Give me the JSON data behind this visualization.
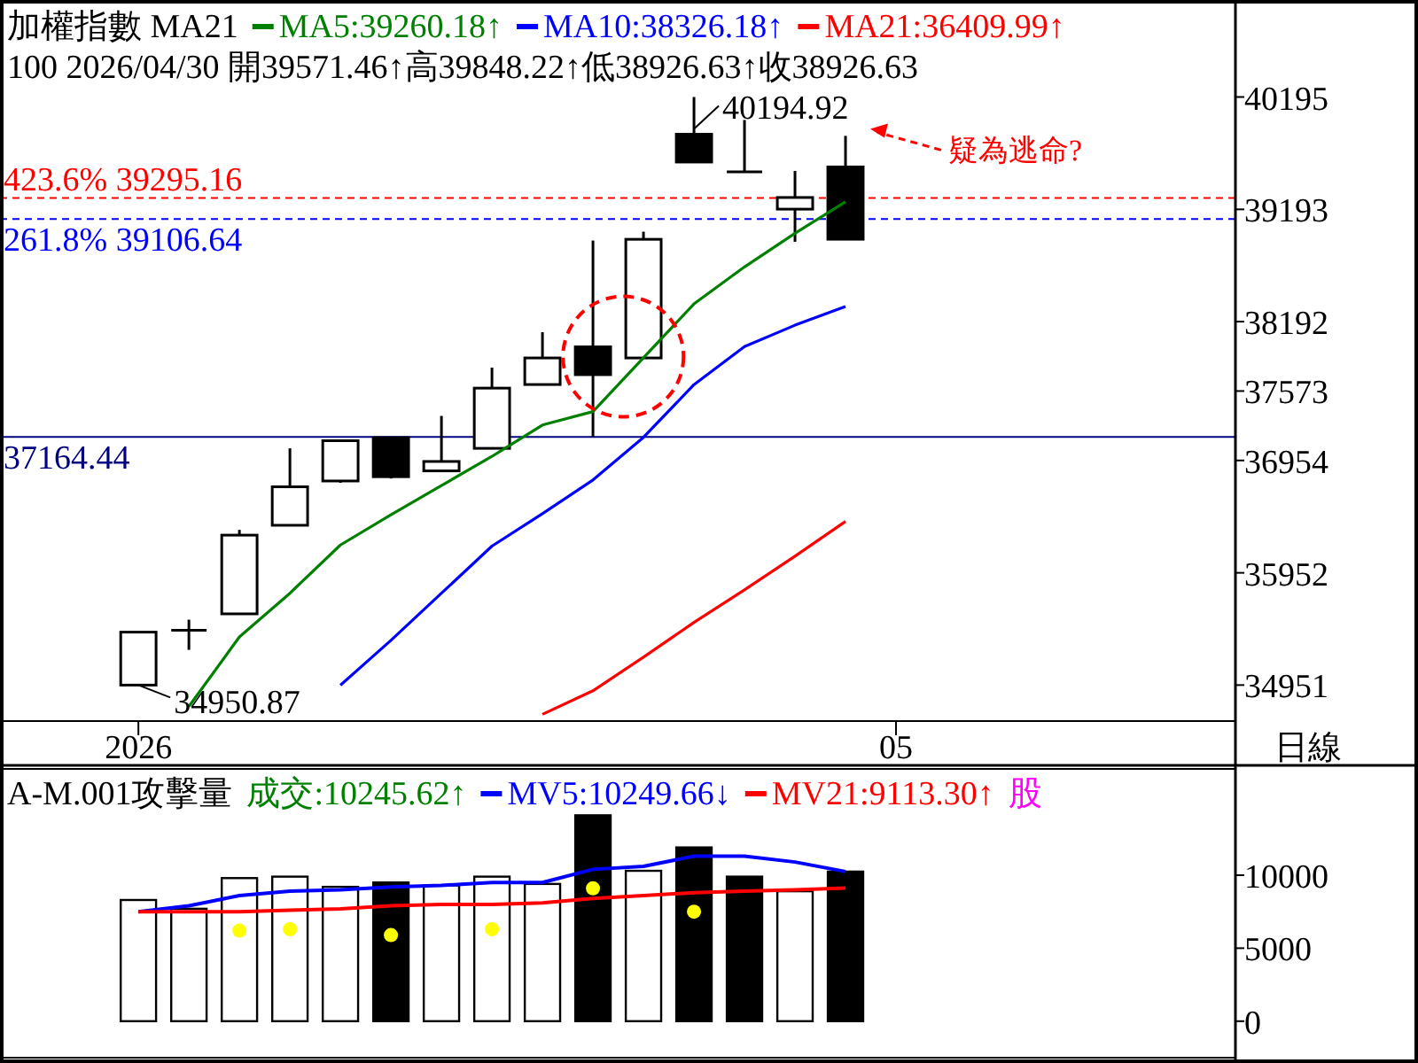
{
  "chart_data": [
    {
      "type": "candlestick",
      "title": "加權指數 MA21",
      "subtitle": "100 2026/04/30 開39571.46↑高39848.22↑低38926.63↑收38926.63",
      "legend": "top",
      "categories": [
        "2026",
        null,
        null,
        null,
        null,
        null,
        null,
        null,
        null,
        null,
        null,
        null,
        null,
        null,
        null,
        "05",
        null,
        null,
        null,
        null,
        null,
        null
      ],
      "ohlc": [
        [
          34950.87,
          35423,
          34950.87,
          35423
        ],
        [
          35439,
          35534,
          35265,
          35439
        ],
        [
          35586,
          36335,
          35586,
          36288
        ],
        [
          36376,
          37062,
          36376,
          36719
        ],
        [
          36771,
          37130,
          36755,
          37130
        ],
        [
          37157,
          37157,
          36793,
          36809
        ],
        [
          36861,
          37351,
          36861,
          36945
        ],
        [
          37062,
          37782,
          37062,
          37599
        ],
        [
          37631,
          38098,
          37631,
          37868
        ],
        [
          37967,
          38915,
          37164.44,
          37719
        ],
        [
          37868,
          38994,
          37868,
          38926
        ],
        [
          39863,
          40194.92,
          39615,
          39615
        ],
        [
          39527,
          39990,
          39527,
          39527
        ],
        [
          39195,
          39536,
          38904,
          39299
        ],
        [
          39571.46,
          39848.22,
          38926.63,
          38926.63
        ],
        null,
        null,
        null,
        null,
        null,
        null,
        null
      ],
      "series": [
        {
          "type": "line",
          "name": "MA5:39260.18↑",
          "color": "#008000",
          "values": [
            null,
            34760,
            35380,
            35770,
            36200,
            36470,
            36730,
            36990,
            37270,
            37390,
            37870,
            38350,
            38680,
            38980,
            39260.18,
            null,
            null,
            null,
            null,
            null,
            null,
            null
          ]
        },
        {
          "type": "line",
          "name": "MA10:38326.18↑",
          "color": "#0000ff",
          "values": [
            null,
            null,
            null,
            null,
            34950,
            35350,
            35770,
            36190,
            36480,
            36780,
            37160,
            37630,
            37970,
            38160,
            38326.18,
            null,
            null,
            null,
            null,
            null,
            null,
            null
          ]
        },
        {
          "type": "line",
          "name": "MA21:36409.99↑",
          "color": "#ff0000",
          "values": [
            null,
            null,
            null,
            null,
            null,
            null,
            null,
            null,
            34690,
            34900,
            35200,
            35510,
            35800,
            36100,
            36409.99,
            null,
            null,
            null,
            null,
            null,
            null,
            null
          ]
        }
      ],
      "ylim": [
        34630,
        41060
      ],
      "yticks": [
        34951,
        35952,
        36954,
        37573,
        38192,
        39193,
        40195
      ],
      "ref_lines": [
        {
          "axis": "y",
          "value": 39295.16,
          "label": "423.6% 39295.16",
          "color": "#ff0000",
          "line_style": "dashed"
        },
        {
          "axis": "y",
          "value": 39106.64,
          "label": "261.8% 39106.64",
          "color": "#0000ff",
          "line_style": "dashed"
        },
        {
          "axis": "y",
          "value": 37164.44,
          "label": "37164.44",
          "color": "#000080",
          "line_style": "solid"
        }
      ],
      "annotations": [
        "40194.92",
        "34950.87",
        "疑為逃命?",
        "日線"
      ]
    },
    {
      "type": "bar",
      "title": "A-M.001攻擊量",
      "legend": "top",
      "tick_labels": "y",
      "categories": [
        null,
        null,
        null,
        null,
        null,
        null,
        null,
        null,
        null,
        null,
        null,
        null,
        null,
        null,
        null,
        null,
        null,
        null,
        null,
        null,
        null,
        null
      ],
      "series": [
        {
          "type": "bar",
          "name": "成交:10245.62↑",
          "values": [
            8300,
            7700,
            9800,
            9900,
            9200,
            9500,
            9300,
            9900,
            9400,
            14100,
            10300,
            11900,
            9900,
            8900,
            10245.62,
            null,
            null,
            null,
            null,
            null,
            null,
            null
          ],
          "colors": [
            "#ffffff",
            "#ffffff",
            "#ffffff",
            "#ffffff",
            "#ffffff",
            "#000000",
            "#ffffff",
            "#ffffff",
            "#ffffff",
            "#000000",
            "#ffffff",
            "#000000",
            "#000000",
            "#ffffff",
            "#000000",
            "#ffffff",
            "#ffffff",
            "#ffffff",
            "#ffffff",
            "#ffffff",
            "#ffffff",
            "#ffffff"
          ]
        },
        {
          "type": "line",
          "name": "MV5:10249.66↓",
          "color": "#0000ff",
          "values": [
            7500,
            7900,
            8600,
            8900,
            9000,
            9200,
            9300,
            9500,
            9500,
            10400,
            10600,
            11300,
            11300,
            10900,
            10249.66,
            null,
            null,
            null,
            null,
            null,
            null,
            null
          ]
        },
        {
          "type": "line",
          "name": "MV21:9113.30↑",
          "color": "#ff0000",
          "values": [
            7500,
            7500,
            7500,
            7600,
            7700,
            7900,
            8000,
            8000,
            8100,
            8400,
            8600,
            8800,
            8900,
            9000,
            9113.3,
            null,
            null,
            null,
            null,
            null,
            null,
            null
          ]
        },
        {
          "type": "scatter",
          "color": "#ffff00",
          "marker": "circle",
          "values": [
            null,
            null,
            6200,
            6300,
            null,
            5900,
            null,
            6300,
            null,
            9100,
            null,
            7500,
            null,
            null,
            null,
            null,
            null,
            null,
            null,
            null,
            null,
            null
          ]
        }
      ],
      "ylim": [
        -2500,
        17400
      ],
      "yticks": [
        0,
        5000,
        10000
      ],
      "annotations": [
        "股"
      ]
    }
  ]
}
